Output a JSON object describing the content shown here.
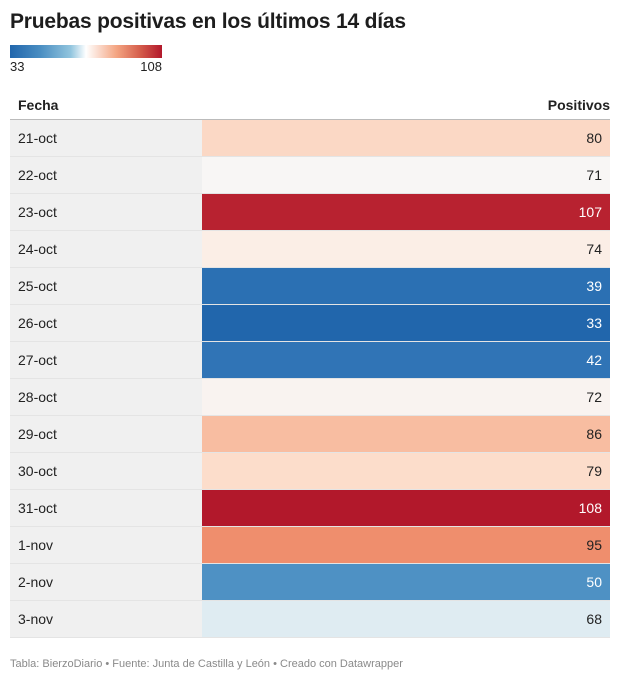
{
  "title": "Pruebas positivas en los últimos 14 días",
  "legend": {
    "min_label": "33",
    "max_label": "108"
  },
  "chart_data": {
    "type": "table",
    "columns": [
      "Fecha",
      "Positivos"
    ],
    "rows": [
      {
        "date": "21-oct",
        "value": 80
      },
      {
        "date": "22-oct",
        "value": 71
      },
      {
        "date": "23-oct",
        "value": 107
      },
      {
        "date": "24-oct",
        "value": 74
      },
      {
        "date": "25-oct",
        "value": 39
      },
      {
        "date": "26-oct",
        "value": 33
      },
      {
        "date": "27-oct",
        "value": 42
      },
      {
        "date": "28-oct",
        "value": 72
      },
      {
        "date": "29-oct",
        "value": 86
      },
      {
        "date": "30-oct",
        "value": 79
      },
      {
        "date": "31-oct",
        "value": 108
      },
      {
        "date": "1-nov",
        "value": 95
      },
      {
        "date": "2-nov",
        "value": 50
      },
      {
        "date": "3-nov",
        "value": 68
      }
    ],
    "color_scale": {
      "min": 33,
      "max": 108,
      "colors": [
        "#2166ac",
        "#ffffff",
        "#b2182b"
      ]
    }
  },
  "footer": "Tabla: BierzoDiario • Fuente: Junta de Castilla y León • Creado con Datawrapper"
}
